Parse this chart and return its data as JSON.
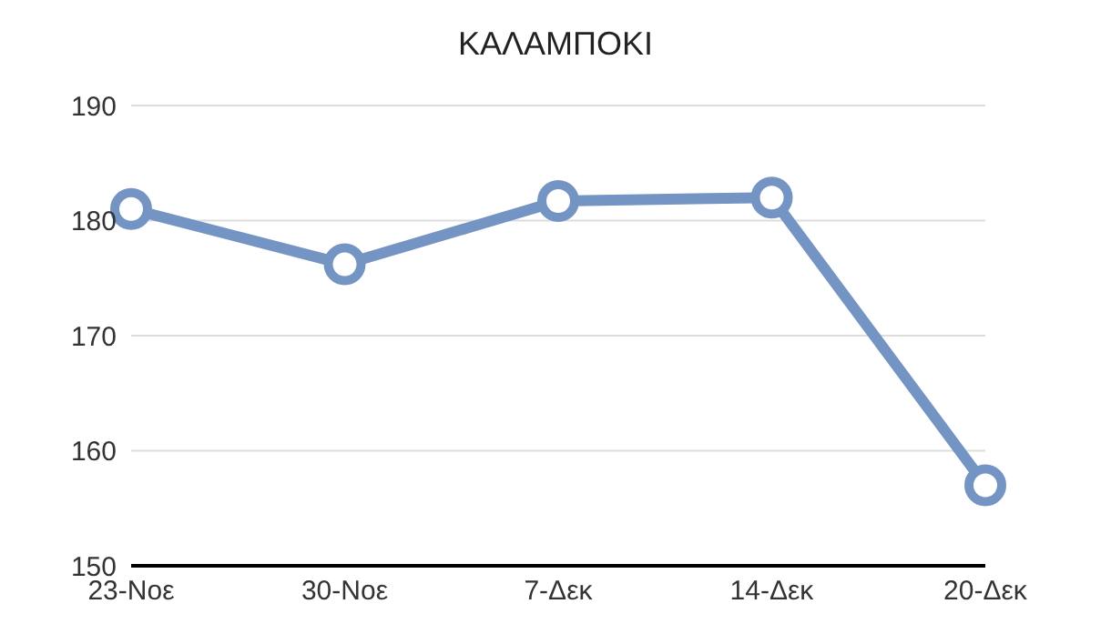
{
  "chart_data": {
    "type": "line",
    "title": "ΚΑΛΑΜΠΟΚΙ",
    "categories": [
      "23-Νοε",
      "30-Νοε",
      "7-Δεκ",
      "14-Δεκ",
      "20-Δεκ"
    ],
    "series": [
      {
        "color": "#7494c4",
        "values": [
          181,
          176.2,
          181.7,
          182,
          157
        ]
      }
    ],
    "ylim": [
      150,
      190
    ],
    "yticks": [
      150,
      160,
      170,
      180,
      190
    ],
    "grid": "y",
    "marker": "circle",
    "line_style": "solid"
  }
}
